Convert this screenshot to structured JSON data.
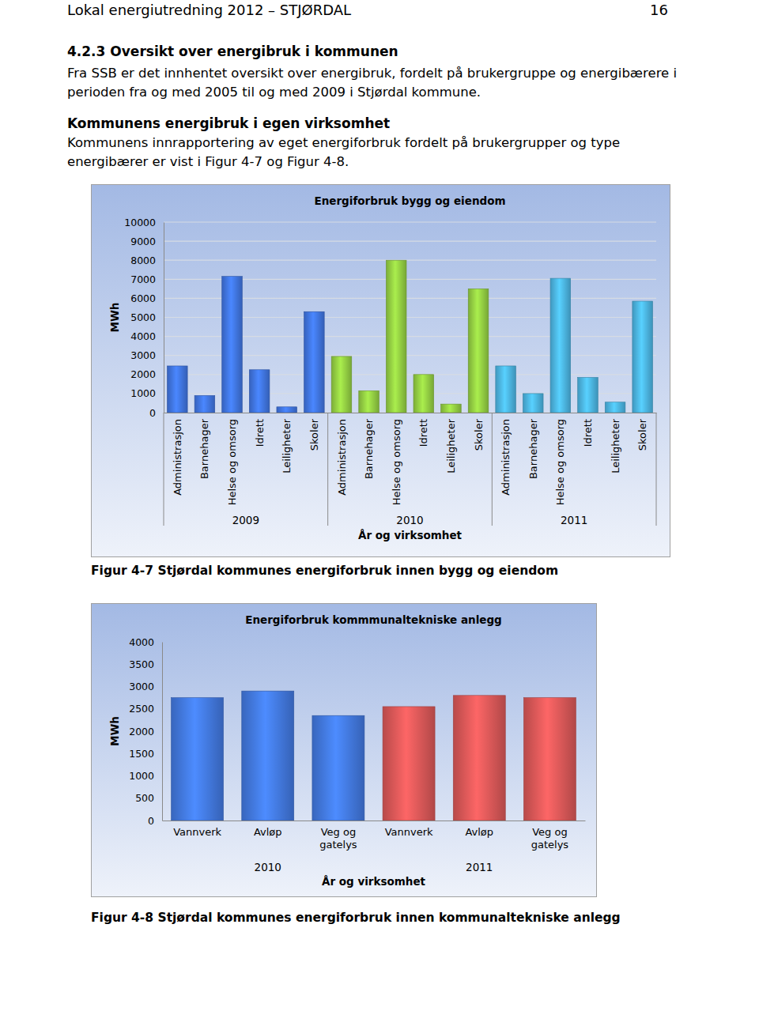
{
  "header": {
    "title": "Lokal energiutredning 2012 – STJØRDAL",
    "page": "16"
  },
  "section": {
    "heading": "4.2.3 Oversikt over energibruk i kommunen",
    "text": "Fra SSB er det innhentet oversikt over energibruk, fordelt på brukergruppe og energibærere i perioden fra og med 2005 til og med 2009 i Stjørdal kommune."
  },
  "subsection": {
    "heading": "Kommunens energibruk i egen virksomhet",
    "text": "Kommunens innrapportering av eget energiforbruk fordelt på brukergrupper og type energibærer er vist i Figur 4-7 og Figur 4-8."
  },
  "chart_data": [
    {
      "type": "bar",
      "title": "Energiforbruk bygg og eiendom",
      "y_label": "MWh",
      "x_label": "År og virksomhet",
      "categories": [
        "Administrasjon",
        "Barnehager",
        "Helse og omsorg",
        "Idrett",
        "Leiligheter",
        "Skoler"
      ],
      "series": [
        {
          "name": "2009",
          "color": "#3d6fd6",
          "values": [
            2450,
            900,
            7150,
            2250,
            300,
            5300
          ]
        },
        {
          "name": "2010",
          "color": "#8cc43f",
          "values": [
            2950,
            1150,
            8000,
            2000,
            450,
            6500
          ]
        },
        {
          "name": "2011",
          "color": "#48acd8",
          "values": [
            2450,
            1000,
            7050,
            1850,
            550,
            5850
          ]
        }
      ],
      "ylim": [
        0,
        10000
      ],
      "yticks": [
        0,
        1000,
        2000,
        3000,
        4000,
        5000,
        6000,
        7000,
        8000,
        9000,
        10000
      ],
      "grid": true
    },
    {
      "type": "bar",
      "title": "Energiforbruk kommmunaltekniske anlegg",
      "y_label": "MWh",
      "x_label": "År og virksomhet",
      "categories": [
        "Vannverk",
        "Avløp",
        "Veg og gatelys"
      ],
      "series": [
        {
          "name": "2010",
          "color": "#3f73d6",
          "values": [
            2750,
            2900,
            2350
          ]
        },
        {
          "name": "2011",
          "color": "#d05454",
          "values": [
            2550,
            2800,
            2750
          ]
        }
      ],
      "ylim": [
        0,
        4000
      ],
      "yticks": [
        0,
        500,
        1000,
        1500,
        2000,
        2500,
        3000,
        3500,
        4000
      ],
      "grid": false
    }
  ],
  "captions": [
    "Figur 4-7 Stjørdal kommunes energiforbruk innen bygg og eiendom",
    "Figur 4-8 Stjørdal kommunes energiforbruk innen kommunaltekniske anlegg"
  ]
}
